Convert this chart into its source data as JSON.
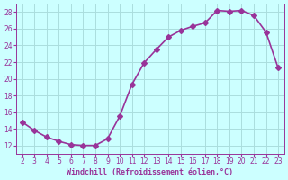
{
  "x": [
    2,
    3,
    4,
    5,
    6,
    7,
    8,
    9,
    10,
    11,
    12,
    13,
    14,
    15,
    16,
    17,
    18,
    19,
    20,
    21,
    22,
    23
  ],
  "y": [
    14.8,
    13.8,
    13.0,
    12.5,
    12.1,
    12.0,
    12.0,
    12.8,
    15.5,
    19.3,
    21.9,
    23.5,
    25.0,
    25.8,
    26.3,
    26.7,
    28.2,
    28.1,
    28.2,
    27.6,
    25.6,
    21.3
  ],
  "line_color": "#993399",
  "marker": "D",
  "marker_size": 3,
  "bg_color": "#ccffff",
  "grid_color": "#aadddd",
  "xlabel": "Windchill (Refroidissement éolien,°C)",
  "xlabel_color": "#993399",
  "tick_color": "#993399",
  "ylim": [
    11,
    29
  ],
  "yticks": [
    12,
    14,
    16,
    18,
    20,
    22,
    24,
    26,
    28
  ],
  "xlim": [
    1.5,
    23.5
  ],
  "xticks": [
    2,
    3,
    4,
    5,
    6,
    7,
    8,
    9,
    10,
    11,
    12,
    13,
    14,
    15,
    16,
    17,
    18,
    19,
    20,
    21,
    22,
    23
  ]
}
